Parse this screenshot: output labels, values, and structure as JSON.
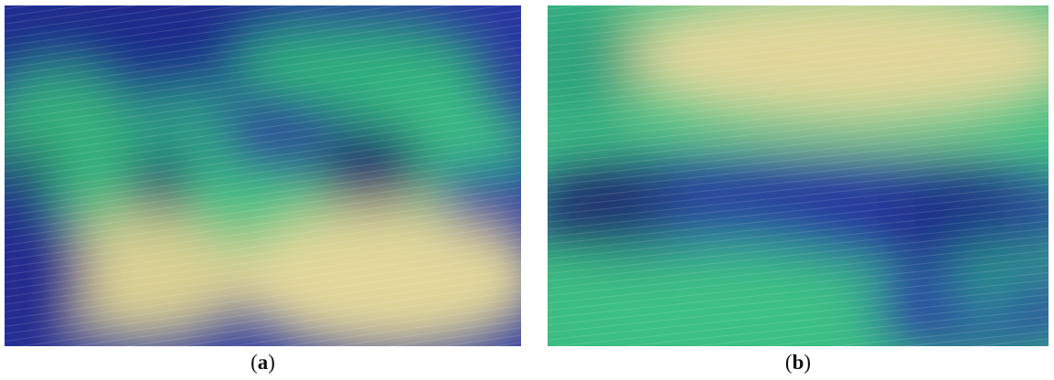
{
  "figure": {
    "panels": [
      {
        "letter": "a",
        "caption_open": "(",
        "caption_close": ")"
      },
      {
        "letter": "b",
        "caption_open": "(",
        "caption_close": ")"
      }
    ],
    "colormap": {
      "low": "#141a5e",
      "mid_low": "#2b3aa8",
      "mid": "#2aa67a",
      "mid_high": "#49c98a",
      "high": "#e3d89a"
    }
  }
}
